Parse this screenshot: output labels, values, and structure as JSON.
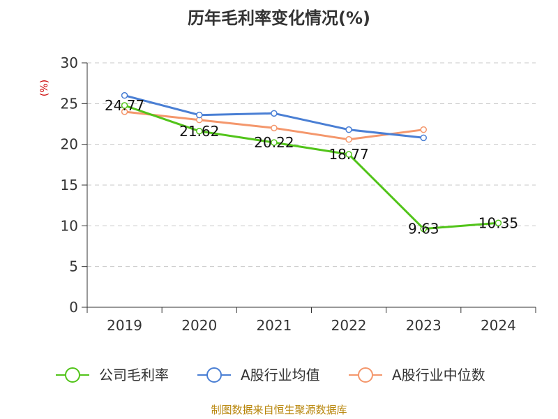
{
  "chart_data": {
    "type": "line",
    "title": "历年毛利率变化情况(%)",
    "ylabel": "(%)",
    "xlabel": "",
    "categories": [
      "2019",
      "2020",
      "2021",
      "2022",
      "2023",
      "2024"
    ],
    "ylim": [
      0,
      30
    ],
    "yticks": [
      0,
      5,
      10,
      15,
      20,
      25,
      30
    ],
    "grid": true,
    "legend_position": "bottom",
    "series": [
      {
        "name": "公司毛利率",
        "color": "#52c41a",
        "values": [
          24.77,
          21.62,
          20.22,
          18.77,
          9.63,
          10.35
        ],
        "labels": [
          "24.77",
          "21.62",
          "20.22",
          "18.77",
          "9.63",
          "10.35"
        ]
      },
      {
        "name": "A股行业均值",
        "color": "#4a7fd4",
        "values": [
          26.0,
          23.6,
          23.8,
          21.8,
          20.8,
          null
        ]
      },
      {
        "name": "A股行业中位数",
        "color": "#f4976c",
        "values": [
          24.0,
          23.0,
          22.0,
          20.6,
          21.8,
          null
        ]
      }
    ]
  },
  "source": "制图数据来自恒生聚源数据库"
}
